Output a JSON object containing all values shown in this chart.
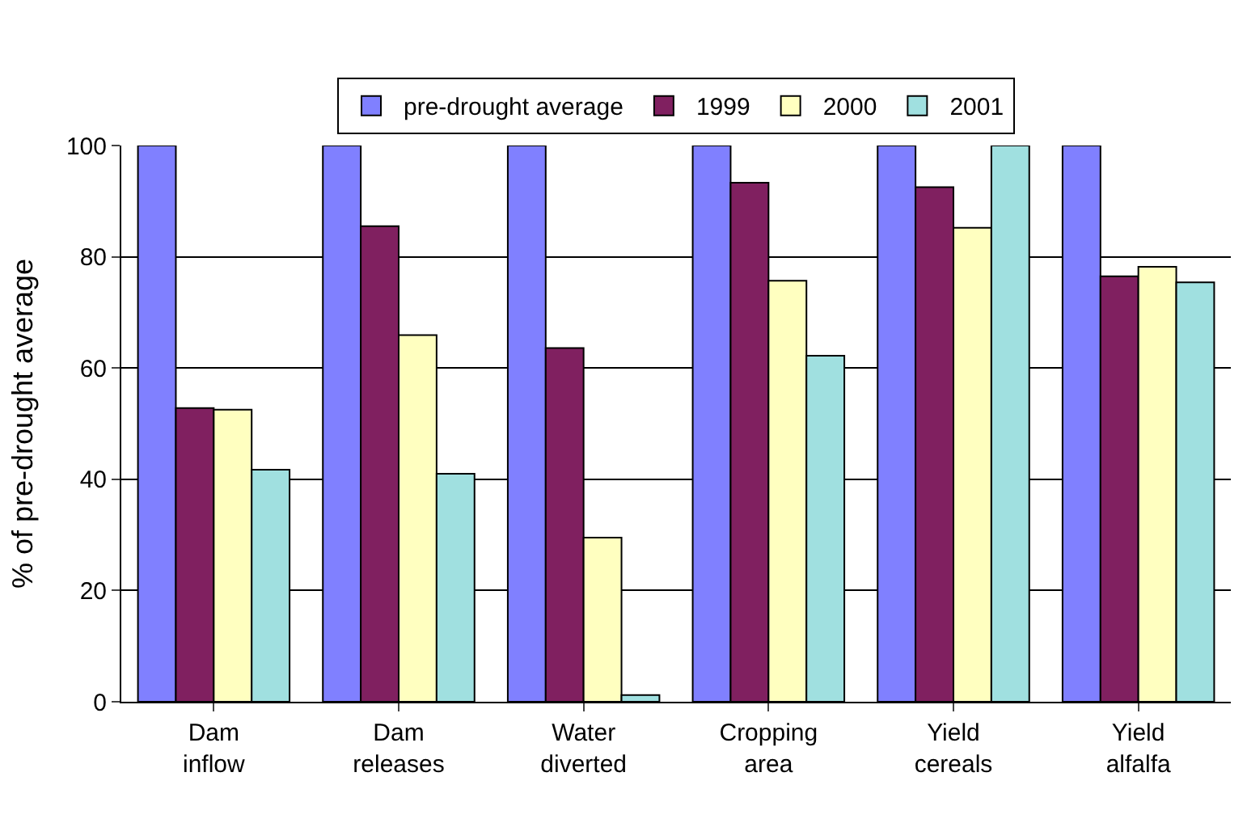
{
  "chart_data": {
    "type": "bar",
    "ylabel": "% of pre-drought average",
    "categories": [
      "Dam\ninflow",
      "Dam\nreleases",
      "Water\ndiverted",
      "Cropping\narea",
      "Yield\ncereals",
      "Yield\nalfalfa"
    ],
    "series": [
      {
        "name": "pre-drought average",
        "color": "#8080ff",
        "values": [
          100,
          100,
          100,
          100,
          100,
          100
        ]
      },
      {
        "name": "1999",
        "color": "#802060",
        "values": [
          52.8,
          85.5,
          63.6,
          93.3,
          92.5,
          76.5
        ]
      },
      {
        "name": "2000",
        "color": "#ffffc0",
        "values": [
          52.5,
          65.9,
          29.5,
          75.7,
          85.2,
          78.2
        ]
      },
      {
        "name": "2001",
        "color": "#a0e0e0",
        "values": [
          41.7,
          41.0,
          1.2,
          62.2,
          100,
          75.4
        ]
      }
    ],
    "ylim": [
      0,
      100
    ],
    "yticks": [
      0,
      20,
      40,
      60,
      80,
      100
    ],
    "grid": "y",
    "legend": "top"
  }
}
